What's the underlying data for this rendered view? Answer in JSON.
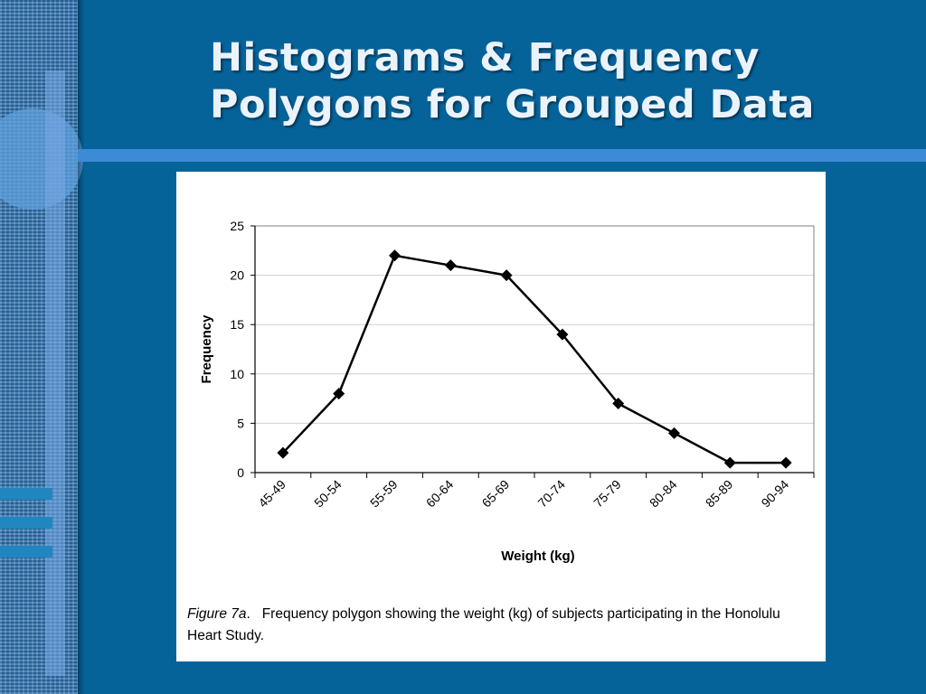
{
  "slide": {
    "title_line1": "Histograms & Frequency",
    "title_line2": "Polygons for Grouped Data"
  },
  "caption": {
    "label": "Figure 7a",
    "label_suffix": ".",
    "text": "Frequency polygon showing the weight (kg) of subjects participating in the Honolulu Heart Study."
  },
  "theme": {
    "background": "#06639a",
    "title_color": "#eaf3fc",
    "rule_color": "#3d8ad6",
    "line_color": "#000000"
  },
  "chart_data": {
    "type": "line",
    "title": "",
    "xlabel": "Weight (kg)",
    "ylabel": "Frequency",
    "categories": [
      "45-49",
      "50-54",
      "55-59",
      "60-64",
      "65-69",
      "70-74",
      "75-79",
      "80-84",
      "85-89",
      "90-94"
    ],
    "values": [
      2,
      8,
      22,
      21,
      20,
      14,
      7,
      4,
      1,
      1
    ],
    "ylim": [
      0,
      25
    ],
    "yticks": [
      0,
      5,
      10,
      15,
      20,
      25
    ],
    "grid": true,
    "legend": false,
    "marker": "diamond"
  }
}
